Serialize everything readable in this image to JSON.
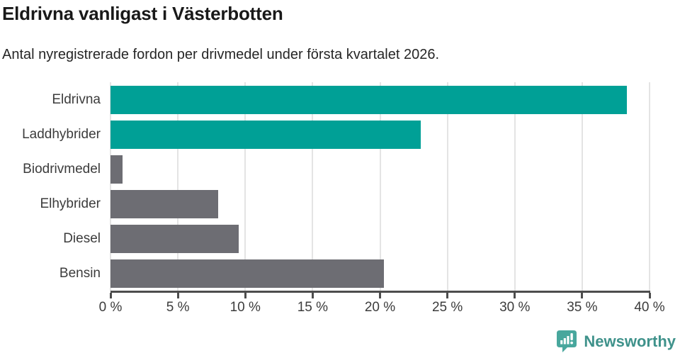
{
  "header": {
    "title": "Eldrivna vanligast i Västerbotten",
    "subtitle": "Antal nyregistrerade fordon per drivmedel under första kvartalet 2026."
  },
  "chart_data": {
    "type": "bar",
    "orientation": "horizontal",
    "title": "Eldrivna vanligast i Västerbotten",
    "subtitle": "Antal nyregistrerade fordon per drivmedel under första kvartalet 2026.",
    "categories": [
      "Eldrivna",
      "Laddhybrider",
      "Biodrivmedel",
      "Elhybrider",
      "Diesel",
      "Bensin"
    ],
    "values": [
      38.3,
      23.0,
      0.9,
      8.0,
      9.5,
      20.3
    ],
    "unit": "%",
    "xlim": [
      0,
      40
    ],
    "x_ticks": [
      0,
      5,
      10,
      15,
      20,
      25,
      30,
      35,
      40
    ],
    "x_tick_suffix": " %",
    "bar_colors": [
      "#00a096",
      "#00a096",
      "#6d6d73",
      "#6d6d73",
      "#6d6d73",
      "#6d6d73"
    ],
    "highlight_color": "#00a096",
    "default_color": "#6d6d73",
    "grid": "vertical-only",
    "gridline_color": "#e4e4e4",
    "axis_color": "#4d4d4d",
    "legend": "none"
  },
  "footer": {
    "brand": "Newsworthy",
    "brand_color": "#3f928b",
    "icon_color": "#48a79d"
  }
}
